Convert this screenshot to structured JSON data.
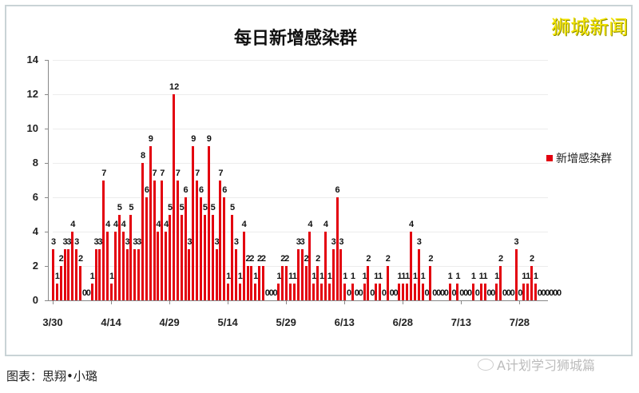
{
  "header": {
    "title": "每日新增感染群",
    "brand": "狮城新闻"
  },
  "legend": {
    "label": "新增感染群",
    "color": "#e3000f"
  },
  "caption": "图表：思翔•小璐",
  "watermark": "A计划学习狮城篇",
  "chart_data": {
    "type": "bar",
    "title": "每日新增感染群",
    "xlabel": "",
    "ylabel": "",
    "ylim": [
      0,
      14
    ],
    "yticks": [
      0,
      2,
      4,
      6,
      8,
      10,
      12,
      14
    ],
    "xtick_labels": [
      "3/30",
      "4/14",
      "4/29",
      "5/14",
      "5/29",
      "6/13",
      "6/28",
      "7/13",
      "7/28"
    ],
    "legend_position": "right",
    "grid": true,
    "series": [
      {
        "name": "新增感染群",
        "color": "#e3000f",
        "start_date": "3/30",
        "values": [
          3,
          1,
          2,
          3,
          3,
          4,
          3,
          2,
          0,
          0,
          1,
          3,
          3,
          7,
          4,
          1,
          4,
          5,
          4,
          3,
          5,
          3,
          3,
          8,
          6,
          9,
          7,
          4,
          7,
          4,
          5,
          12,
          7,
          5,
          6,
          3,
          9,
          7,
          6,
          5,
          9,
          5,
          3,
          7,
          6,
          1,
          5,
          3,
          1,
          4,
          2,
          2,
          1,
          2,
          2,
          0,
          0,
          0,
          1,
          2,
          2,
          1,
          1,
          3,
          3,
          2,
          4,
          1,
          2,
          1,
          4,
          1,
          3,
          6,
          3,
          1,
          0,
          1,
          0,
          0,
          1,
          2,
          0,
          1,
          1,
          0,
          2,
          0,
          0,
          1,
          1,
          1,
          4,
          1,
          3,
          1,
          0,
          2,
          0,
          0,
          0,
          0,
          1,
          0,
          1,
          0,
          0,
          0,
          1,
          0,
          1,
          1,
          0,
          0,
          1,
          2,
          0,
          0,
          0,
          3,
          0,
          1,
          1,
          2,
          1,
          0,
          0,
          0,
          0,
          0,
          0
        ]
      }
    ]
  }
}
